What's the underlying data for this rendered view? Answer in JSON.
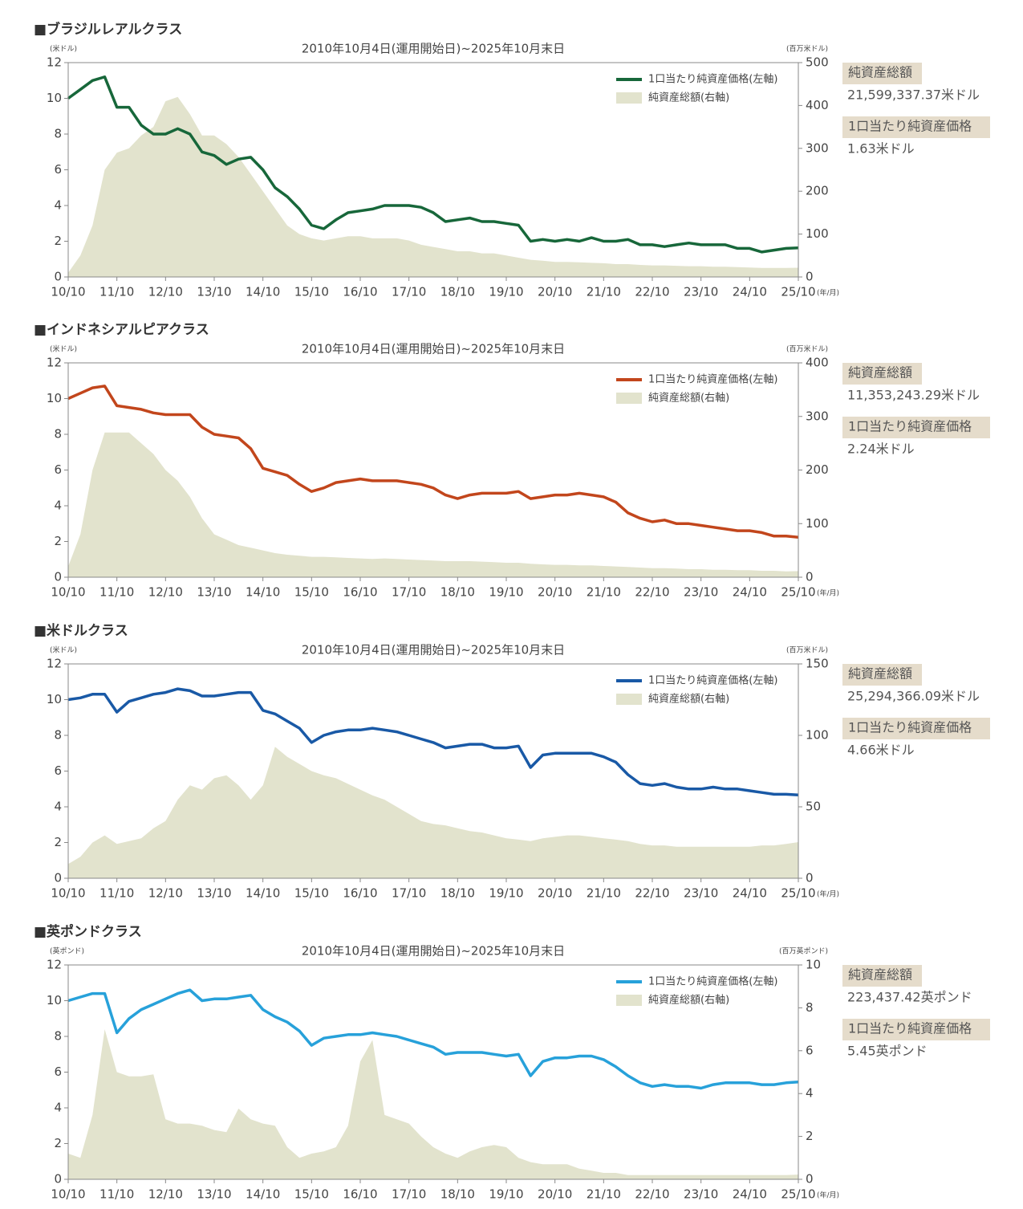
{
  "chart_data": [
    {
      "type": "combo",
      "heading": "■ブラジルレアルクラス",
      "title": "2010年10月4日(運用開始日)~2025年10月末日",
      "y_unit": "(米ドル)",
      "y2_unit": "(百万米ドル)",
      "x_unit": "(年/月)",
      "x": [
        "10/10",
        "11/01",
        "11/04",
        "11/07",
        "11/10",
        "12/01",
        "12/04",
        "12/07",
        "12/10",
        "13/01",
        "13/04",
        "13/07",
        "13/10",
        "14/01",
        "14/04",
        "14/07",
        "14/10",
        "15/01",
        "15/04",
        "15/07",
        "15/10",
        "16/01",
        "16/04",
        "16/07",
        "16/10",
        "17/01",
        "17/04",
        "17/07",
        "17/10",
        "18/01",
        "18/04",
        "18/07",
        "18/10",
        "19/01",
        "19/04",
        "19/07",
        "19/10",
        "20/01",
        "20/04",
        "20/07",
        "20/10",
        "21/01",
        "21/04",
        "21/07",
        "21/10",
        "22/01",
        "22/04",
        "22/07",
        "22/10",
        "23/01",
        "23/04",
        "23/07",
        "23/10",
        "24/01",
        "24/04",
        "24/07",
        "24/10",
        "25/01",
        "25/04",
        "25/07",
        "25/10"
      ],
      "xticks": [
        "10/10",
        "11/10",
        "12/10",
        "13/10",
        "14/10",
        "15/10",
        "16/10",
        "17/10",
        "18/10",
        "19/10",
        "20/10",
        "21/10",
        "22/10",
        "23/10",
        "24/10",
        "25/10"
      ],
      "ylim": [
        0,
        12
      ],
      "yticks": [
        0,
        2,
        4,
        6,
        8,
        10,
        12
      ],
      "y2lim": [
        0,
        500
      ],
      "y2ticks": [
        0,
        100,
        200,
        300,
        400,
        500
      ],
      "series": [
        {
          "name": "純資産総額(右軸)",
          "type": "area",
          "axis": "y2",
          "color": "#e2e3cd",
          "values": [
            10,
            50,
            120,
            250,
            290,
            300,
            330,
            350,
            410,
            420,
            380,
            330,
            330,
            310,
            280,
            240,
            200,
            160,
            120,
            100,
            90,
            85,
            90,
            95,
            95,
            90,
            90,
            90,
            85,
            75,
            70,
            65,
            60,
            60,
            55,
            55,
            50,
            45,
            40,
            38,
            35,
            35,
            34,
            33,
            32,
            30,
            30,
            28,
            27,
            27,
            26,
            25,
            25,
            24,
            24,
            23,
            22,
            21,
            21,
            21,
            21.6
          ]
        },
        {
          "name": "1口当たり純資産価格(左軸)",
          "type": "line",
          "color": "#17673a",
          "values": [
            10.0,
            10.5,
            11.0,
            11.2,
            9.5,
            9.5,
            8.5,
            8.0,
            8.0,
            8.3,
            8.0,
            7.0,
            6.8,
            6.3,
            6.6,
            6.7,
            6.0,
            5.0,
            4.5,
            3.8,
            2.9,
            2.7,
            3.2,
            3.6,
            3.7,
            3.8,
            4.0,
            4.0,
            4.0,
            3.9,
            3.6,
            3.1,
            3.2,
            3.3,
            3.1,
            3.1,
            3.0,
            2.9,
            2.0,
            2.1,
            2.0,
            2.1,
            2.0,
            2.2,
            2.0,
            2.0,
            2.1,
            1.8,
            1.8,
            1.7,
            1.8,
            1.9,
            1.8,
            1.8,
            1.8,
            1.6,
            1.6,
            1.4,
            1.5,
            1.6,
            1.63
          ]
        }
      ],
      "summary": [
        {
          "label": "純資産総額",
          "value": "21,599,337.37米ドル"
        },
        {
          "label": "1口当たり純資産価格",
          "value": "1.63米ドル"
        }
      ]
    },
    {
      "type": "combo",
      "heading": "■インドネシアルピアクラス",
      "title": "2010年10月4日(運用開始日)~2025年10月末日",
      "y_unit": "(米ドル)",
      "y2_unit": "(百万米ドル)",
      "x_unit": "(年/月)",
      "x": [
        "10/10",
        "11/01",
        "11/04",
        "11/07",
        "11/10",
        "12/01",
        "12/04",
        "12/07",
        "12/10",
        "13/01",
        "13/04",
        "13/07",
        "13/10",
        "14/01",
        "14/04",
        "14/07",
        "14/10",
        "15/01",
        "15/04",
        "15/07",
        "15/10",
        "16/01",
        "16/04",
        "16/07",
        "16/10",
        "17/01",
        "17/04",
        "17/07",
        "17/10",
        "18/01",
        "18/04",
        "18/07",
        "18/10",
        "19/01",
        "19/04",
        "19/07",
        "19/10",
        "20/01",
        "20/04",
        "20/07",
        "20/10",
        "21/01",
        "21/04",
        "21/07",
        "21/10",
        "22/01",
        "22/04",
        "22/07",
        "22/10",
        "23/01",
        "23/04",
        "23/07",
        "23/10",
        "24/01",
        "24/04",
        "24/07",
        "24/10",
        "25/01",
        "25/04",
        "25/07",
        "25/10"
      ],
      "xticks": [
        "10/10",
        "11/10",
        "12/10",
        "13/10",
        "14/10",
        "15/10",
        "16/10",
        "17/10",
        "18/10",
        "19/10",
        "20/10",
        "21/10",
        "22/10",
        "23/10",
        "24/10",
        "25/10"
      ],
      "ylim": [
        0,
        12
      ],
      "yticks": [
        0,
        2,
        4,
        6,
        8,
        10,
        12
      ],
      "y2lim": [
        0,
        400
      ],
      "y2ticks": [
        0,
        100,
        200,
        300,
        400
      ],
      "series": [
        {
          "name": "純資産総額(右軸)",
          "type": "area",
          "axis": "y2",
          "color": "#e2e3cd",
          "values": [
            20,
            80,
            200,
            270,
            270,
            270,
            250,
            230,
            200,
            180,
            150,
            110,
            80,
            70,
            60,
            55,
            50,
            45,
            42,
            40,
            38,
            38,
            37,
            36,
            35,
            34,
            35,
            34,
            33,
            32,
            31,
            30,
            30,
            30,
            29,
            28,
            27,
            27,
            25,
            24,
            23,
            23,
            22,
            22,
            21,
            20,
            19,
            18,
            17,
            17,
            16,
            15,
            15,
            14,
            14,
            13,
            13,
            12,
            12,
            11,
            11.35
          ]
        },
        {
          "name": "1口当たり純資産価格(左軸)",
          "type": "line",
          "color": "#c2461c",
          "values": [
            10.0,
            10.3,
            10.6,
            10.7,
            9.6,
            9.5,
            9.4,
            9.2,
            9.1,
            9.1,
            9.1,
            8.4,
            8.0,
            7.9,
            7.8,
            7.2,
            6.1,
            5.9,
            5.7,
            5.2,
            4.8,
            5.0,
            5.3,
            5.4,
            5.5,
            5.4,
            5.4,
            5.4,
            5.3,
            5.2,
            5.0,
            4.6,
            4.4,
            4.6,
            4.7,
            4.7,
            4.7,
            4.8,
            4.4,
            4.5,
            4.6,
            4.6,
            4.7,
            4.6,
            4.5,
            4.2,
            3.6,
            3.3,
            3.1,
            3.2,
            3.0,
            3.0,
            2.9,
            2.8,
            2.7,
            2.6,
            2.6,
            2.5,
            2.3,
            2.3,
            2.24
          ]
        }
      ],
      "summary": [
        {
          "label": "純資産総額",
          "value": "11,353,243.29米ドル"
        },
        {
          "label": "1口当たり純資産価格",
          "value": "2.24米ドル"
        }
      ]
    },
    {
      "type": "combo",
      "heading": "■米ドルクラス",
      "title": "2010年10月4日(運用開始日)~2025年10月末日",
      "y_unit": "(米ドル)",
      "y2_unit": "(百万米ドル)",
      "x_unit": "(年/月)",
      "x": [
        "10/10",
        "11/01",
        "11/04",
        "11/07",
        "11/10",
        "12/01",
        "12/04",
        "12/07",
        "12/10",
        "13/01",
        "13/04",
        "13/07",
        "13/10",
        "14/01",
        "14/04",
        "14/07",
        "14/10",
        "15/01",
        "15/04",
        "15/07",
        "15/10",
        "16/01",
        "16/04",
        "16/07",
        "16/10",
        "17/01",
        "17/04",
        "17/07",
        "17/10",
        "18/01",
        "18/04",
        "18/07",
        "18/10",
        "19/01",
        "19/04",
        "19/07",
        "19/10",
        "20/01",
        "20/04",
        "20/07",
        "20/10",
        "21/01",
        "21/04",
        "21/07",
        "21/10",
        "22/01",
        "22/04",
        "22/07",
        "22/10",
        "23/01",
        "23/04",
        "23/07",
        "23/10",
        "24/01",
        "24/04",
        "24/07",
        "24/10",
        "25/01",
        "25/04",
        "25/07",
        "25/10"
      ],
      "xticks": [
        "10/10",
        "11/10",
        "12/10",
        "13/10",
        "14/10",
        "15/10",
        "16/10",
        "17/10",
        "18/10",
        "19/10",
        "20/10",
        "21/10",
        "22/10",
        "23/10",
        "24/10",
        "25/10"
      ],
      "ylim": [
        0,
        12
      ],
      "yticks": [
        0,
        2,
        4,
        6,
        8,
        10,
        12
      ],
      "y2lim": [
        0,
        150
      ],
      "y2ticks": [
        0,
        50,
        100,
        150
      ],
      "series": [
        {
          "name": "純資産総額(右軸)",
          "type": "area",
          "axis": "y2",
          "color": "#e2e3cd",
          "values": [
            10,
            15,
            25,
            30,
            24,
            26,
            28,
            35,
            40,
            55,
            65,
            62,
            70,
            72,
            65,
            55,
            65,
            92,
            85,
            80,
            75,
            72,
            70,
            66,
            62,
            58,
            55,
            50,
            45,
            40,
            38,
            37,
            35,
            33,
            32,
            30,
            28,
            27,
            26,
            28,
            29,
            30,
            30,
            29,
            28,
            27,
            26,
            24,
            23,
            23,
            22,
            22,
            22,
            22,
            22,
            22,
            22,
            23,
            23,
            24,
            25.29
          ]
        },
        {
          "name": "1口当たり純資産価格(左軸)",
          "type": "line",
          "color": "#1959a6",
          "values": [
            10.0,
            10.1,
            10.3,
            10.3,
            9.3,
            9.9,
            10.1,
            10.3,
            10.4,
            10.6,
            10.5,
            10.2,
            10.2,
            10.3,
            10.4,
            10.4,
            9.4,
            9.2,
            8.8,
            8.4,
            7.6,
            8.0,
            8.2,
            8.3,
            8.3,
            8.4,
            8.3,
            8.2,
            8.0,
            7.8,
            7.6,
            7.3,
            7.4,
            7.5,
            7.5,
            7.3,
            7.3,
            7.4,
            6.2,
            6.9,
            7.0,
            7.0,
            7.0,
            7.0,
            6.8,
            6.5,
            5.8,
            5.3,
            5.2,
            5.3,
            5.1,
            5.0,
            5.0,
            5.1,
            5.0,
            5.0,
            4.9,
            4.8,
            4.7,
            4.7,
            4.66
          ]
        }
      ],
      "summary": [
        {
          "label": "純資産総額",
          "value": "25,294,366.09米ドル"
        },
        {
          "label": "1口当たり純資産価格",
          "value": "4.66米ドル"
        }
      ]
    },
    {
      "type": "combo",
      "heading": "■英ポンドクラス",
      "title": "2010年10月4日(運用開始日)~2025年10月末日",
      "y_unit": "(英ポンド)",
      "y2_unit": "(百万英ポンド)",
      "x_unit": "(年/月)",
      "x": [
        "10/10",
        "11/01",
        "11/04",
        "11/07",
        "11/10",
        "12/01",
        "12/04",
        "12/07",
        "12/10",
        "13/01",
        "13/04",
        "13/07",
        "13/10",
        "14/01",
        "14/04",
        "14/07",
        "14/10",
        "15/01",
        "15/04",
        "15/07",
        "15/10",
        "16/01",
        "16/04",
        "16/07",
        "16/10",
        "17/01",
        "17/04",
        "17/07",
        "17/10",
        "18/01",
        "18/04",
        "18/07",
        "18/10",
        "19/01",
        "19/04",
        "19/07",
        "19/10",
        "20/01",
        "20/04",
        "20/07",
        "20/10",
        "21/01",
        "21/04",
        "21/07",
        "21/10",
        "22/01",
        "22/04",
        "22/07",
        "22/10",
        "23/01",
        "23/04",
        "23/07",
        "23/10",
        "24/01",
        "24/04",
        "24/07",
        "24/10",
        "25/01",
        "25/04",
        "25/07",
        "25/10"
      ],
      "xticks": [
        "10/10",
        "11/10",
        "12/10",
        "13/10",
        "14/10",
        "15/10",
        "16/10",
        "17/10",
        "18/10",
        "19/10",
        "20/10",
        "21/10",
        "22/10",
        "23/10",
        "24/10",
        "25/10"
      ],
      "ylim": [
        0,
        12
      ],
      "yticks": [
        0,
        2,
        4,
        6,
        8,
        10,
        12
      ],
      "y2lim": [
        0,
        10
      ],
      "y2ticks": [
        0,
        2,
        4,
        6,
        8,
        10
      ],
      "series": [
        {
          "name": "純資産総額(右軸)",
          "type": "area",
          "axis": "y2",
          "color": "#e2e3cd",
          "values": [
            1.2,
            1.0,
            3.0,
            7.0,
            5.0,
            4.8,
            4.8,
            4.9,
            2.8,
            2.6,
            2.6,
            2.5,
            2.3,
            2.2,
            3.3,
            2.8,
            2.6,
            2.5,
            1.5,
            1.0,
            1.2,
            1.3,
            1.5,
            2.5,
            5.5,
            6.5,
            3.0,
            2.8,
            2.6,
            2.0,
            1.5,
            1.2,
            1.0,
            1.3,
            1.5,
            1.6,
            1.5,
            1.0,
            0.8,
            0.7,
            0.7,
            0.7,
            0.5,
            0.4,
            0.3,
            0.3,
            0.2,
            0.2,
            0.2,
            0.2,
            0.2,
            0.2,
            0.2,
            0.2,
            0.2,
            0.2,
            0.2,
            0.2,
            0.2,
            0.2,
            0.22
          ]
        },
        {
          "name": "1口当たり純資産価格(左軸)",
          "type": "line",
          "color": "#27a1da",
          "values": [
            10.0,
            10.2,
            10.4,
            10.4,
            8.2,
            9.0,
            9.5,
            9.8,
            10.1,
            10.4,
            10.6,
            10.0,
            10.1,
            10.1,
            10.2,
            10.3,
            9.5,
            9.1,
            8.8,
            8.3,
            7.5,
            7.9,
            8.0,
            8.1,
            8.1,
            8.2,
            8.1,
            8.0,
            7.8,
            7.6,
            7.4,
            7.0,
            7.1,
            7.1,
            7.1,
            7.0,
            6.9,
            7.0,
            5.8,
            6.6,
            6.8,
            6.8,
            6.9,
            6.9,
            6.7,
            6.3,
            5.8,
            5.4,
            5.2,
            5.3,
            5.2,
            5.2,
            5.1,
            5.3,
            5.4,
            5.4,
            5.4,
            5.3,
            5.3,
            5.4,
            5.45
          ]
        }
      ],
      "summary": [
        {
          "label": "純資産総額",
          "value": "223,437.42英ポンド"
        },
        {
          "label": "1口当たり純資産価格",
          "value": "5.45英ポンド"
        }
      ]
    }
  ]
}
